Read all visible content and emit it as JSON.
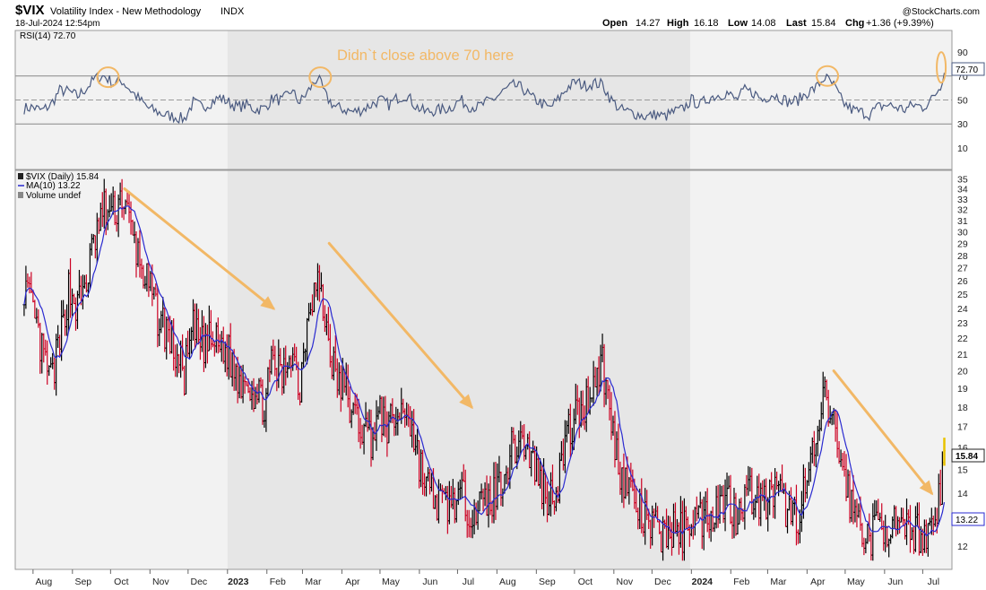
{
  "header": {
    "symbol": "$VIX",
    "name": "Volatility Index - New Methodology",
    "exchange": "INDX",
    "datetime": "18-Jul-2024 12:54pm",
    "copyright": "@StockCharts.com",
    "quote": {
      "open_label": "Open",
      "open": "14.27",
      "high_label": "High",
      "high": "16.18",
      "low_label": "Low",
      "low": "14.08",
      "last_label": "Last",
      "last": "15.84",
      "chg_label": "Chg",
      "chg": "+1.36 (+9.39%)"
    }
  },
  "rsi_panel": {
    "legend": "RSI(14) 72.70",
    "last_badge": "72.70",
    "annotation": "Didn`t close above 70 here",
    "y_ticks": [
      "90",
      "70",
      "50",
      "30",
      "10"
    ]
  },
  "price_panel": {
    "legend_price": "$VIX (Daily) 15.84",
    "legend_ma": "MA(10) 13.22",
    "legend_volume": "Volume undef",
    "last_badge": "15.84",
    "ma_badge": "13.22",
    "y_ticks": [
      "35",
      "34",
      "33",
      "32",
      "31",
      "30",
      "29",
      "28",
      "27",
      "26",
      "25",
      "24",
      "23",
      "22",
      "21",
      "20",
      "19",
      "18",
      "17",
      "16",
      "15",
      "14",
      "13",
      "12"
    ]
  },
  "x_axis": {
    "labels": [
      "Aug",
      "Sep",
      "Oct",
      "Nov",
      "Dec",
      "2023",
      "Feb",
      "Mar",
      "Apr",
      "May",
      "Jun",
      "Jul",
      "Aug",
      "Sep",
      "Oct",
      "Nov",
      "Dec",
      "2024",
      "Feb",
      "Mar",
      "Apr",
      "May",
      "Jun",
      "Jul"
    ],
    "bold_labels": [
      "2023",
      "2024"
    ]
  },
  "colors": {
    "up_bar": "#000000",
    "down_bar": "#cc0022",
    "ma_line": "#2a2ad0",
    "rsi_line": "#4a5a80",
    "annotation": "#f2b866",
    "shade_2023": "#e6e6e6",
    "panel_bg": "#f2f2f2",
    "last_bar": "#e8c200"
  },
  "chart_data": {
    "type": "candlestick-with-indicators",
    "title": "Volatility Index - New Methodology",
    "x_range": [
      "2022-08-01",
      "2024-07-18"
    ],
    "price_series": {
      "name": "$VIX (Daily)",
      "ylim": [
        11.3,
        35.5
      ],
      "scale": "log",
      "points": [
        [
          "2022-07-25",
          25.8
        ],
        [
          "2022-08-01",
          23.5
        ],
        [
          "2022-08-08",
          21.0
        ],
        [
          "2022-08-15",
          19.5
        ],
        [
          "2022-08-22",
          21.5
        ],
        [
          "2022-08-29",
          25.5
        ],
        [
          "2022-09-05",
          24.0
        ],
        [
          "2022-09-12",
          26.0
        ],
        [
          "2022-09-19",
          29.5
        ],
        [
          "2022-09-26",
          32.0
        ],
        [
          "2022-10-03",
          31.5
        ],
        [
          "2022-10-10",
          33.5
        ],
        [
          "2022-10-17",
          30.0
        ],
        [
          "2022-10-24",
          27.5
        ],
        [
          "2022-10-31",
          25.5
        ],
        [
          "2022-11-07",
          23.5
        ],
        [
          "2022-11-14",
          22.5
        ],
        [
          "2022-11-21",
          21.0
        ],
        [
          "2022-11-28",
          19.8
        ],
        [
          "2022-12-05",
          22.5
        ],
        [
          "2022-12-12",
          21.5
        ],
        [
          "2022-12-19",
          21.8
        ],
        [
          "2022-12-26",
          21.5
        ],
        [
          "2023-01-02",
          21.0
        ],
        [
          "2023-01-09",
          19.5
        ],
        [
          "2023-01-16",
          19.8
        ],
        [
          "2023-01-23",
          18.5
        ],
        [
          "2023-01-30",
          18.3
        ],
        [
          "2023-02-06",
          20.5
        ],
        [
          "2023-02-13",
          19.5
        ],
        [
          "2023-02-20",
          21.5
        ],
        [
          "2023-02-27",
          19.0
        ],
        [
          "2023-03-06",
          24.5
        ],
        [
          "2023-03-13",
          26.0
        ],
        [
          "2023-03-20",
          22.5
        ],
        [
          "2023-03-27",
          19.5
        ],
        [
          "2023-04-03",
          19.0
        ],
        [
          "2023-04-10",
          17.5
        ],
        [
          "2023-04-17",
          17.0
        ],
        [
          "2023-04-24",
          16.5
        ],
        [
          "2023-05-01",
          17.5
        ],
        [
          "2023-05-08",
          17.0
        ],
        [
          "2023-05-15",
          17.5
        ],
        [
          "2023-05-22",
          18.0
        ],
        [
          "2023-05-29",
          16.0
        ],
        [
          "2023-06-05",
          14.5
        ],
        [
          "2023-06-12",
          13.8
        ],
        [
          "2023-06-19",
          13.5
        ],
        [
          "2023-06-26",
          13.6
        ],
        [
          "2023-07-03",
          13.8
        ],
        [
          "2023-07-10",
          13.5
        ],
        [
          "2023-07-17",
          13.4
        ],
        [
          "2023-07-24",
          13.6
        ],
        [
          "2023-07-31",
          14.0
        ],
        [
          "2023-08-07",
          15.0
        ],
        [
          "2023-08-14",
          16.0
        ],
        [
          "2023-08-21",
          16.5
        ],
        [
          "2023-08-28",
          15.5
        ],
        [
          "2023-09-04",
          14.5
        ],
        [
          "2023-09-11",
          13.8
        ],
        [
          "2023-09-18",
          14.5
        ],
        [
          "2023-09-25",
          16.5
        ],
        [
          "2023-10-02",
          17.5
        ],
        [
          "2023-10-09",
          18.0
        ],
        [
          "2023-10-16",
          19.5
        ],
        [
          "2023-10-23",
          20.5
        ],
        [
          "2023-10-30",
          17.0
        ],
        [
          "2023-11-06",
          15.0
        ],
        [
          "2023-11-13",
          14.2
        ],
        [
          "2023-11-20",
          13.3
        ],
        [
          "2023-11-27",
          12.8
        ],
        [
          "2023-12-04",
          12.6
        ],
        [
          "2023-12-11",
          12.4
        ],
        [
          "2023-12-18",
          12.6
        ],
        [
          "2023-12-25",
          12.5
        ],
        [
          "2024-01-01",
          13.2
        ],
        [
          "2024-01-08",
          13.0
        ],
        [
          "2024-01-15",
          13.3
        ],
        [
          "2024-01-22",
          13.5
        ],
        [
          "2024-01-29",
          13.8
        ],
        [
          "2024-02-05",
          13.2
        ],
        [
          "2024-02-12",
          14.0
        ],
        [
          "2024-02-19",
          14.0
        ],
        [
          "2024-02-26",
          13.5
        ],
        [
          "2024-03-04",
          14.0
        ],
        [
          "2024-03-11",
          13.8
        ],
        [
          "2024-03-18",
          13.2
        ],
        [
          "2024-03-25",
          13.2
        ],
        [
          "2024-04-01",
          14.5
        ],
        [
          "2024-04-08",
          16.0
        ],
        [
          "2024-04-15",
          18.5
        ],
        [
          "2024-04-22",
          17.0
        ],
        [
          "2024-04-29",
          15.0
        ],
        [
          "2024-05-06",
          13.5
        ],
        [
          "2024-05-13",
          12.8
        ],
        [
          "2024-05-20",
          12.2
        ],
        [
          "2024-05-27",
          12.8
        ],
        [
          "2024-06-03",
          12.8
        ],
        [
          "2024-06-10",
          12.6
        ],
        [
          "2024-06-17",
          12.4
        ],
        [
          "2024-06-24",
          12.6
        ],
        [
          "2024-07-01",
          12.4
        ],
        [
          "2024-07-08",
          12.8
        ],
        [
          "2024-07-15",
          14.0
        ],
        [
          "2024-07-18",
          15.84
        ]
      ]
    },
    "ma_series": {
      "name": "MA(10)",
      "last_value": 13.22
    },
    "rsi_series": {
      "name": "RSI(14)",
      "last_value": 72.7,
      "ylim": [
        0,
        100
      ],
      "points": [
        [
          "2022-07-25",
          43
        ],
        [
          "2022-08-01",
          44
        ],
        [
          "2022-08-08",
          41
        ],
        [
          "2022-08-15",
          46
        ],
        [
          "2022-08-22",
          58
        ],
        [
          "2022-08-29",
          57
        ],
        [
          "2022-09-05",
          53
        ],
        [
          "2022-09-12",
          60
        ],
        [
          "2022-09-19",
          68
        ],
        [
          "2022-09-26",
          70
        ],
        [
          "2022-10-03",
          64
        ],
        [
          "2022-10-10",
          66
        ],
        [
          "2022-10-17",
          58
        ],
        [
          "2022-10-24",
          50
        ],
        [
          "2022-10-31",
          43
        ],
        [
          "2022-11-07",
          40
        ],
        [
          "2022-11-14",
          37
        ],
        [
          "2022-11-21",
          36
        ],
        [
          "2022-11-28",
          34
        ],
        [
          "2022-12-05",
          48
        ],
        [
          "2022-12-12",
          44
        ],
        [
          "2022-12-19",
          48
        ],
        [
          "2022-12-26",
          52
        ],
        [
          "2023-01-02",
          48
        ],
        [
          "2023-01-09",
          44
        ],
        [
          "2023-01-16",
          46
        ],
        [
          "2023-01-23",
          42
        ],
        [
          "2023-01-30",
          43
        ],
        [
          "2023-02-06",
          52
        ],
        [
          "2023-02-13",
          49
        ],
        [
          "2023-02-20",
          58
        ],
        [
          "2023-02-27",
          48
        ],
        [
          "2023-03-06",
          58
        ],
        [
          "2023-03-13",
          69
        ],
        [
          "2023-03-20",
          52
        ],
        [
          "2023-03-27",
          44
        ],
        [
          "2023-04-03",
          42
        ],
        [
          "2023-04-10",
          40
        ],
        [
          "2023-04-17",
          42
        ],
        [
          "2023-04-24",
          46
        ],
        [
          "2023-05-01",
          50
        ],
        [
          "2023-05-08",
          46
        ],
        [
          "2023-05-15",
          52
        ],
        [
          "2023-05-22",
          54
        ],
        [
          "2023-05-29",
          45
        ],
        [
          "2023-06-05",
          40
        ],
        [
          "2023-06-12",
          41
        ],
        [
          "2023-06-19",
          42
        ],
        [
          "2023-06-26",
          44
        ],
        [
          "2023-07-03",
          50
        ],
        [
          "2023-07-10",
          45
        ],
        [
          "2023-07-17",
          44
        ],
        [
          "2023-07-24",
          48
        ],
        [
          "2023-07-31",
          52
        ],
        [
          "2023-08-07",
          58
        ],
        [
          "2023-08-14",
          62
        ],
        [
          "2023-08-21",
          60
        ],
        [
          "2023-08-28",
          52
        ],
        [
          "2023-09-04",
          48
        ],
        [
          "2023-09-11",
          43
        ],
        [
          "2023-09-18",
          50
        ],
        [
          "2023-09-25",
          60
        ],
        [
          "2023-10-02",
          65
        ],
        [
          "2023-10-09",
          62
        ],
        [
          "2023-10-16",
          64
        ],
        [
          "2023-10-23",
          63
        ],
        [
          "2023-10-30",
          50
        ],
        [
          "2023-11-06",
          42
        ],
        [
          "2023-11-13",
          40
        ],
        [
          "2023-11-20",
          38
        ],
        [
          "2023-11-27",
          36
        ],
        [
          "2023-12-04",
          38
        ],
        [
          "2023-12-11",
          36
        ],
        [
          "2023-12-18",
          40
        ],
        [
          "2023-12-25",
          42
        ],
        [
          "2024-01-01",
          50
        ],
        [
          "2024-01-08",
          46
        ],
        [
          "2024-01-15",
          52
        ],
        [
          "2024-01-22",
          54
        ],
        [
          "2024-01-29",
          56
        ],
        [
          "2024-02-05",
          50
        ],
        [
          "2024-02-12",
          58
        ],
        [
          "2024-02-19",
          56
        ],
        [
          "2024-02-26",
          50
        ],
        [
          "2024-03-04",
          55
        ],
        [
          "2024-03-11",
          52
        ],
        [
          "2024-03-18",
          48
        ],
        [
          "2024-03-25",
          50
        ],
        [
          "2024-04-01",
          56
        ],
        [
          "2024-04-08",
          60
        ],
        [
          "2024-04-15",
          69
        ],
        [
          "2024-04-22",
          62
        ],
        [
          "2024-04-29",
          48
        ],
        [
          "2024-05-06",
          42
        ],
        [
          "2024-05-13",
          40
        ],
        [
          "2024-05-20",
          38
        ],
        [
          "2024-05-27",
          44
        ],
        [
          "2024-06-03",
          46
        ],
        [
          "2024-06-10",
          44
        ],
        [
          "2024-06-17",
          42
        ],
        [
          "2024-06-24",
          46
        ],
        [
          "2024-07-01",
          44
        ],
        [
          "2024-07-08",
          50
        ],
        [
          "2024-07-15",
          62
        ],
        [
          "2024-07-18",
          72.7
        ]
      ],
      "reference_lines": [
        70,
        50,
        30
      ]
    },
    "annotations": [
      {
        "type": "circle",
        "panel": "rsi",
        "at": [
          "2022-09-29",
          69
        ]
      },
      {
        "type": "circle",
        "panel": "rsi",
        "at": [
          "2023-03-15",
          69
        ]
      },
      {
        "type": "circle",
        "panel": "rsi",
        "at": [
          "2024-04-17",
          70
        ]
      },
      {
        "type": "circle",
        "panel": "rsi",
        "at": [
          "2024-07-17",
          72.7
        ]
      },
      {
        "type": "arrow",
        "panel": "price",
        "from": [
          "2022-10-12",
          34
        ],
        "to": [
          "2023-02-06",
          24
        ]
      },
      {
        "type": "arrow",
        "panel": "price",
        "from": [
          "2023-03-22",
          29
        ],
        "to": [
          "2023-07-12",
          18
        ]
      },
      {
        "type": "arrow",
        "panel": "price",
        "from": [
          "2024-04-22",
          20
        ],
        "to": [
          "2024-07-08",
          14
        ]
      }
    ],
    "shaded_region": [
      "2023-01-01",
      "2023-12-31"
    ],
    "legend_placement": "top-left"
  }
}
